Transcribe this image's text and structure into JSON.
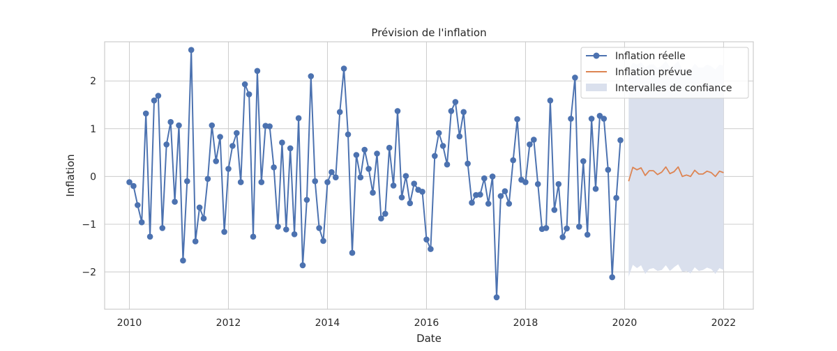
{
  "chart_data": {
    "type": "line",
    "title": "Prévision de l'inflation",
    "xlabel": "Date",
    "ylabel": "Inflation",
    "xlim": [
      2009.5,
      2022.6
    ],
    "ylim": [
      -2.78,
      2.82
    ],
    "xticks": [
      2010,
      2012,
      2014,
      2016,
      2018,
      2020,
      2022
    ],
    "xtick_labels": [
      "2010",
      "2012",
      "2014",
      "2016",
      "2018",
      "2020",
      "2022"
    ],
    "yticks": [
      -2,
      -1,
      0,
      1,
      2
    ],
    "ytick_labels": [
      "−2",
      "−1",
      "0",
      "1",
      "2"
    ],
    "grid": true,
    "legend_position": "top-right",
    "legend": [
      "Inflation réelle",
      "Inflation prévue",
      "Intervalles de confiance"
    ],
    "colors": {
      "actual": "#4c72b0",
      "forecast": "#dd8452",
      "interval": "#dae0ed",
      "grid": "#cccccc",
      "frame": "#cccccc"
    },
    "series": [
      {
        "name": "Inflation réelle",
        "x_start": "2010-01",
        "x_step_months": 1,
        "values": [
          -0.12,
          -0.2,
          -0.6,
          -0.96,
          1.32,
          -1.26,
          1.59,
          1.69,
          -1.08,
          0.67,
          1.14,
          -0.53,
          1.07,
          -1.76,
          -0.1,
          2.65,
          -1.36,
          -0.65,
          -0.88,
          -0.05,
          1.07,
          0.32,
          0.83,
          -1.16,
          0.16,
          0.64,
          0.91,
          -0.12,
          1.93,
          1.72,
          -1.26,
          2.21,
          -0.12,
          1.06,
          1.05,
          0.19,
          -1.05,
          0.71,
          -1.11,
          0.59,
          -1.21,
          1.22,
          -1.86,
          -0.49,
          2.1,
          -0.1,
          -1.08,
          -1.35,
          -0.12,
          0.09,
          -0.02,
          1.35,
          2.26,
          0.88,
          -1.6,
          0.45,
          -0.02,
          0.56,
          0.16,
          -0.34,
          0.48,
          -0.88,
          -0.78,
          0.6,
          -0.19,
          1.37,
          -0.44,
          0.01,
          -0.56,
          -0.15,
          -0.28,
          -0.32,
          -1.32,
          -1.52,
          0.43,
          0.91,
          0.64,
          0.25,
          1.37,
          1.56,
          0.84,
          1.35,
          0.27,
          -0.55,
          -0.39,
          -0.38,
          -0.04,
          -0.57,
          0.0,
          -2.53,
          -0.41,
          -0.31,
          -0.57,
          0.34,
          1.2,
          -0.07,
          -0.12,
          0.67,
          0.77,
          -0.16,
          -1.1,
          -1.08,
          1.59,
          -0.7,
          -0.16,
          -1.27,
          -1.09,
          1.21,
          2.07,
          -1.05,
          0.32,
          -1.22,
          1.21,
          -0.26,
          1.27,
          1.21,
          0.14,
          -2.11,
          -0.45,
          0.76
        ]
      },
      {
        "name": "Inflation prévue",
        "x_start": "2020-02",
        "x_step_months": 1,
        "values": [
          -0.1,
          0.19,
          0.14,
          0.18,
          0.02,
          0.12,
          0.12,
          0.04,
          0.09,
          0.2,
          0.06,
          0.1,
          0.2,
          0.0,
          0.03,
          0.0,
          0.13,
          0.05,
          0.05,
          0.11,
          0.08,
          0.0,
          0.11,
          0.08
        ]
      }
    ],
    "interval": {
      "name": "Intervalles de confiance",
      "x_start": "2020-02",
      "x_step_months": 1,
      "upper": [
        2.22,
        2.38,
        2.34,
        2.39,
        2.28,
        2.34,
        2.35,
        2.27,
        2.32,
        2.42,
        2.28,
        2.33,
        2.42,
        2.24,
        2.27,
        2.24,
        2.36,
        2.28,
        2.28,
        2.34,
        2.31,
        2.24,
        2.34,
        2.32
      ],
      "lower": [
        -2.1,
        -1.85,
        -1.92,
        -1.86,
        -2.04,
        -1.94,
        -1.92,
        -1.98,
        -1.96,
        -1.86,
        -1.98,
        -1.9,
        -1.84,
        -2.0,
        -1.98,
        -2.03,
        -1.9,
        -1.98,
        -1.96,
        -1.91,
        -1.94,
        -2.04,
        -1.92,
        -1.96
      ]
    }
  }
}
